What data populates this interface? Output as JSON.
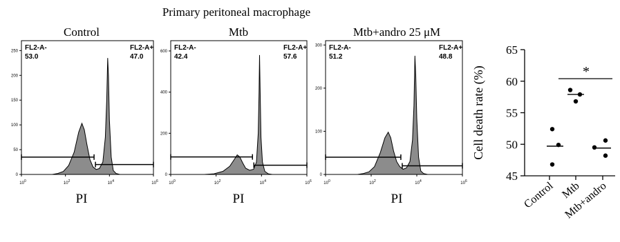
{
  "figure_title": "Primary peritoneal macrophage",
  "colors": {
    "histogram_fill": "#8c8c8c",
    "line": "#000000",
    "background": "#ffffff"
  },
  "chart_data": [
    {
      "type": "area",
      "title": "Control",
      "xlabel": "PI",
      "x_scale": "log",
      "xlim": [
        1,
        1000000
      ],
      "x_ticks": [
        {
          "value": 1,
          "label": "10",
          "exp": "0"
        },
        {
          "value": 100,
          "label": "10",
          "exp": "2"
        },
        {
          "value": 10000,
          "label": "10",
          "exp": "4"
        },
        {
          "value": 1000000,
          "label": "10",
          "exp": "6"
        }
      ],
      "ylim": [
        0,
        270
      ],
      "y_ticks": [
        "0",
        "50",
        "100",
        "150",
        "200",
        "250"
      ],
      "y_tick_values": [
        0,
        50,
        100,
        150,
        200,
        250
      ],
      "gates": [
        {
          "name": "FL2-A-",
          "value": "53.0",
          "x_range": [
            1,
            2000
          ],
          "level": 35
        },
        {
          "name": "FL2-A+",
          "value": "47.0",
          "x_range": [
            2000,
            1000000
          ],
          "level": 20
        }
      ],
      "histogram": [
        [
          25,
          0
        ],
        [
          45,
          2
        ],
        [
          80,
          6
        ],
        [
          140,
          18
        ],
        [
          250,
          45
        ],
        [
          400,
          85
        ],
        [
          560,
          103
        ],
        [
          720,
          90
        ],
        [
          950,
          60
        ],
        [
          1300,
          30
        ],
        [
          1800,
          15
        ],
        [
          2500,
          10
        ],
        [
          3500,
          12
        ],
        [
          5000,
          25
        ],
        [
          6500,
          75
        ],
        [
          7500,
          150
        ],
        [
          8300,
          235
        ],
        [
          9000,
          200
        ],
        [
          10000,
          110
        ],
        [
          12000,
          35
        ],
        [
          15000,
          8
        ],
        [
          20000,
          2
        ],
        [
          30000,
          0
        ]
      ]
    },
    {
      "type": "area",
      "title": "Mtb",
      "xlabel": "PI",
      "x_scale": "log",
      "xlim": [
        1,
        1000000
      ],
      "x_ticks": [
        {
          "value": 1,
          "label": "10",
          "exp": "0"
        },
        {
          "value": 100,
          "label": "10",
          "exp": "2"
        },
        {
          "value": 10000,
          "label": "10",
          "exp": "4"
        },
        {
          "value": 1000000,
          "label": "10",
          "exp": "6"
        }
      ],
      "ylim": [
        0,
        650
      ],
      "y_ticks": [
        "0",
        "200",
        "400",
        "600"
      ],
      "y_tick_values": [
        0,
        200,
        400,
        600
      ],
      "gates": [
        {
          "name": "FL2-A-",
          "value": "42.4",
          "x_range": [
            1,
            4000
          ],
          "level": 85
        },
        {
          "name": "FL2-A+",
          "value": "57.6",
          "x_range": [
            4000,
            1000000
          ],
          "level": 45
        }
      ],
      "histogram": [
        [
          30,
          0
        ],
        [
          80,
          3
        ],
        [
          200,
          15
        ],
        [
          400,
          40
        ],
        [
          650,
          75
        ],
        [
          850,
          95
        ],
        [
          1100,
          85
        ],
        [
          1500,
          55
        ],
        [
          2000,
          30
        ],
        [
          3000,
          20
        ],
        [
          4500,
          25
        ],
        [
          6000,
          60
        ],
        [
          7200,
          200
        ],
        [
          7800,
          400
        ],
        [
          8200,
          580
        ],
        [
          8700,
          420
        ],
        [
          9500,
          180
        ],
        [
          11000,
          60
        ],
        [
          14000,
          15
        ],
        [
          20000,
          3
        ],
        [
          30000,
          0
        ]
      ]
    },
    {
      "type": "area",
      "title": "Mtb+andro 25 μM",
      "xlabel": "PI",
      "x_scale": "log",
      "xlim": [
        1,
        1000000
      ],
      "x_ticks": [
        {
          "value": 1,
          "label": "10",
          "exp": "0"
        },
        {
          "value": 100,
          "label": "10",
          "exp": "2"
        },
        {
          "value": 10000,
          "label": "10",
          "exp": "4"
        },
        {
          "value": 1000000,
          "label": "10",
          "exp": "6"
        }
      ],
      "ylim": [
        0,
        310
      ],
      "y_ticks": [
        "0",
        "100",
        "200",
        "300"
      ],
      "y_tick_values": [
        0,
        100,
        200,
        300
      ],
      "gates": [
        {
          "name": "FL2-A-",
          "value": "51.2",
          "x_range": [
            1,
            2000
          ],
          "level": 40
        },
        {
          "name": "FL2-A+",
          "value": "48.8",
          "x_range": [
            2000,
            1000000
          ],
          "level": 20
        }
      ],
      "histogram": [
        [
          25,
          0
        ],
        [
          45,
          2
        ],
        [
          80,
          6
        ],
        [
          140,
          18
        ],
        [
          250,
          50
        ],
        [
          400,
          85
        ],
        [
          560,
          98
        ],
        [
          720,
          85
        ],
        [
          950,
          55
        ],
        [
          1300,
          30
        ],
        [
          1800,
          18
        ],
        [
          2500,
          12
        ],
        [
          3500,
          15
        ],
        [
          5000,
          30
        ],
        [
          6500,
          80
        ],
        [
          7500,
          160
        ],
        [
          8300,
          275
        ],
        [
          9000,
          230
        ],
        [
          10000,
          130
        ],
        [
          12000,
          40
        ],
        [
          15000,
          8
        ],
        [
          20000,
          2
        ],
        [
          30000,
          0
        ]
      ]
    },
    {
      "type": "scatter",
      "ylabel": "Cell death rate (%)",
      "ylim": [
        45,
        65
      ],
      "y_ticks": [
        "45",
        "50",
        "55",
        "60",
        "65"
      ],
      "y_tick_values": [
        45,
        50,
        55,
        60,
        65
      ],
      "categories": [
        "Control",
        "Mtb",
        "Mtb+andro"
      ],
      "points": [
        [
          52.4,
          49.9,
          46.8
        ],
        [
          58.6,
          57.9,
          56.8
        ],
        [
          50.6,
          49.5,
          48.2
        ]
      ],
      "means": [
        49.7,
        57.9,
        49.4
      ],
      "significance": {
        "label": "*",
        "between": [
          0,
          2
        ],
        "y": 60.4
      }
    }
  ]
}
